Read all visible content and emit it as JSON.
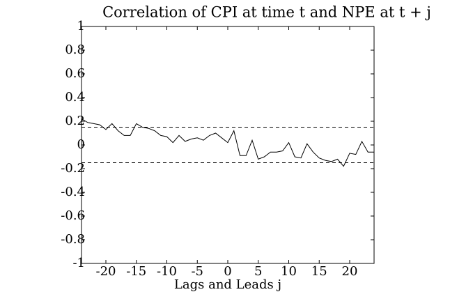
{
  "chart_data": {
    "type": "line",
    "title": "Correlation of CPI at time t and NPE at t + j",
    "x_label": "Lags and Leads j",
    "x": [
      -24,
      -23,
      -22,
      -21,
      -20,
      -19,
      -18,
      -17,
      -16,
      -15,
      -14,
      -13,
      -12,
      -11,
      -10,
      -9,
      -8,
      -7,
      -6,
      -5,
      -4,
      -3,
      -2,
      -1,
      0,
      1,
      2,
      3,
      4,
      5,
      6,
      7,
      8,
      9,
      10,
      11,
      12,
      13,
      14,
      15,
      16,
      17,
      18,
      19,
      20,
      21,
      22,
      23,
      24
    ],
    "series": [
      {
        "name": "Correlation",
        "color": "#000000",
        "values": [
          0.22,
          0.19,
          0.18,
          0.17,
          0.13,
          0.18,
          0.12,
          0.08,
          0.08,
          0.18,
          0.15,
          0.14,
          0.12,
          0.08,
          0.07,
          0.02,
          0.08,
          0.03,
          0.05,
          0.06,
          0.04,
          0.08,
          0.1,
          0.06,
          0.02,
          0.12,
          -0.09,
          -0.09,
          0.04,
          -0.12,
          -0.1,
          -0.06,
          -0.06,
          -0.05,
          0.02,
          -0.1,
          -0.11,
          0.01,
          -0.06,
          -0.11,
          -0.13,
          -0.14,
          -0.12,
          -0.18,
          -0.07,
          -0.08,
          0.03,
          -0.06,
          -0.06
        ]
      }
    ],
    "reference_lines": [
      0.15,
      -0.15
    ],
    "xlim": [
      -24,
      24
    ],
    "ylim": [
      -1,
      1
    ],
    "xticks": [
      -20,
      -15,
      -10,
      -5,
      0,
      5,
      10,
      15,
      20
    ],
    "yticks": [
      1,
      0.8,
      0.6,
      0.4,
      0.2,
      0,
      -0.2,
      -0.4,
      -0.6,
      -0.8,
      -1
    ],
    "grid": false
  }
}
